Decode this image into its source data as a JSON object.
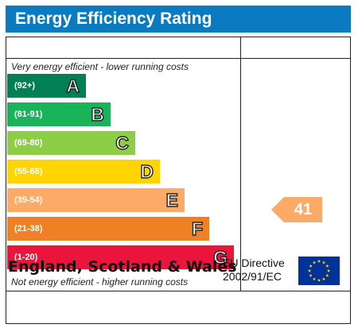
{
  "title": "Energy Efficiency Rating",
  "notes": {
    "top": "Very energy efficient - lower running costs",
    "bottom": "Not energy efficient - higher running costs"
  },
  "bands": [
    {
      "range": "(92+)",
      "letter": "A",
      "color": "#008054",
      "level": 1
    },
    {
      "range": "(81-91)",
      "letter": "B",
      "color": "#19b459",
      "level": 2
    },
    {
      "range": "(69-80)",
      "letter": "C",
      "color": "#8dce46",
      "level": 3
    },
    {
      "range": "(55-68)",
      "letter": "D",
      "color": "#ffd500",
      "level": 4
    },
    {
      "range": "(39-54)",
      "letter": "E",
      "color": "#fcaa65",
      "level": 5
    },
    {
      "range": "(21-38)",
      "letter": "F",
      "color": "#ef8023",
      "level": 6
    },
    {
      "range": "(1-20)",
      "letter": "G",
      "color": "#e9153b",
      "level": 7
    }
  ],
  "rating": {
    "value": "41",
    "band": "E",
    "color": "#fcaa65"
  },
  "footer": {
    "region": "England, Scotland & Wales",
    "directive_line1": "EU Directive",
    "directive_line2": "2002/91/EC"
  },
  "colors": {
    "header_bg": "#0a7bc1",
    "eu_flag_bg": "#003399",
    "eu_star": "#ffdd00"
  }
}
